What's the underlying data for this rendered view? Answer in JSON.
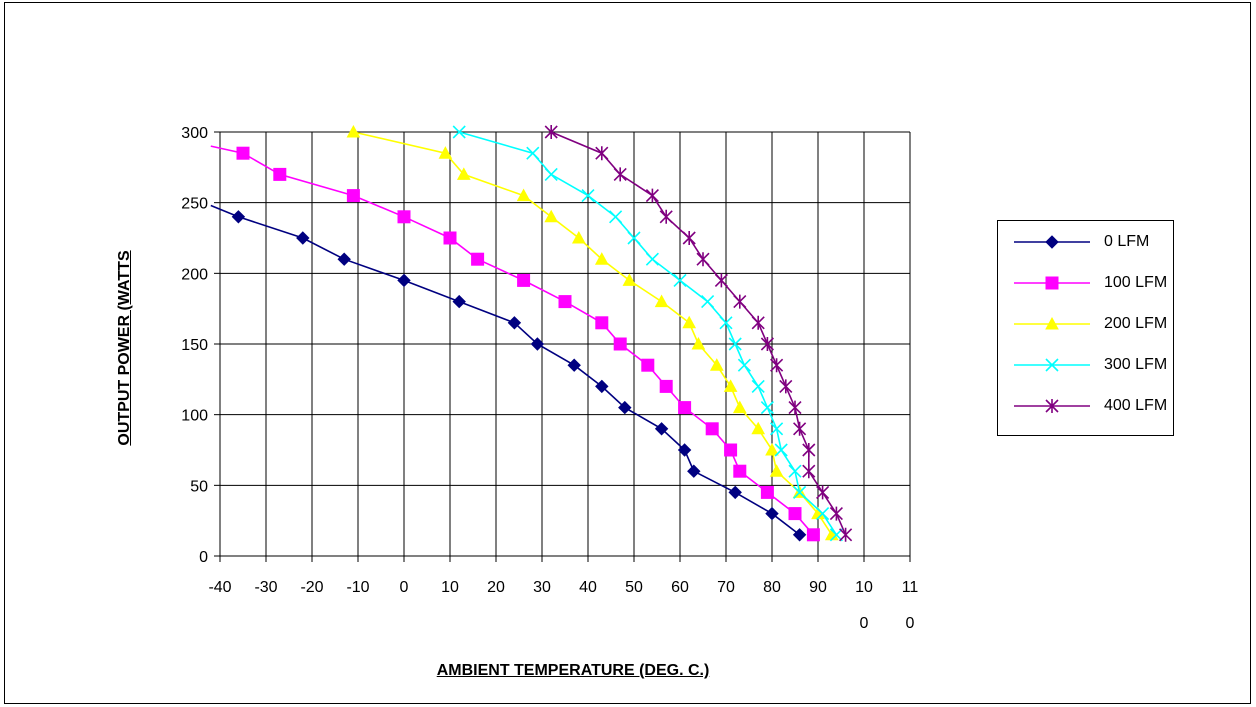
{
  "chart_data": {
    "type": "line",
    "title": "",
    "xlabel": "AMBIENT TEMPERATURE (DEG. C.)",
    "ylabel": "OUTPUT POWER (WATTS",
    "xlim": [
      -40,
      110
    ],
    "ylim": [
      0,
      300
    ],
    "x_ticks": [
      -40,
      -30,
      -20,
      -10,
      0,
      10,
      20,
      30,
      40,
      50,
      60,
      70,
      80,
      90,
      100,
      110
    ],
    "x_tick_labels": [
      [
        "-40"
      ],
      [
        "-30"
      ],
      [
        "-20"
      ],
      [
        "-10"
      ],
      [
        "0"
      ],
      [
        "10"
      ],
      [
        "20"
      ],
      [
        "30"
      ],
      [
        "40"
      ],
      [
        "50"
      ],
      [
        "60"
      ],
      [
        "70"
      ],
      [
        "80"
      ],
      [
        "90"
      ],
      [
        "10",
        "0"
      ],
      [
        "11",
        "0"
      ]
    ],
    "y_ticks": [
      0,
      50,
      100,
      150,
      200,
      250,
      300
    ],
    "y_tick_labels": [
      "0",
      "50",
      "100",
      "150",
      "200",
      "250",
      "300"
    ],
    "grid": true,
    "legend_position": "right",
    "series": [
      {
        "name": "0 LFM",
        "color": "#000080",
        "marker": "diamond",
        "points": [
          [
            -42,
            248
          ],
          [
            -36,
            240
          ],
          [
            -22,
            225
          ],
          [
            -13,
            210
          ],
          [
            0,
            195
          ],
          [
            12,
            180
          ],
          [
            24,
            165
          ],
          [
            29,
            150
          ],
          [
            37,
            135
          ],
          [
            43,
            120
          ],
          [
            48,
            105
          ],
          [
            56,
            90
          ],
          [
            61,
            75
          ],
          [
            63,
            60
          ],
          [
            72,
            45
          ],
          [
            80,
            30
          ],
          [
            86,
            15
          ]
        ]
      },
      {
        "name": "100 LFM",
        "color": "#ff00ff",
        "marker": "square",
        "points": [
          [
            -42,
            290
          ],
          [
            -35,
            285
          ],
          [
            -27,
            270
          ],
          [
            -11,
            255
          ],
          [
            0,
            240
          ],
          [
            10,
            225
          ],
          [
            16,
            210
          ],
          [
            26,
            195
          ],
          [
            35,
            180
          ],
          [
            43,
            165
          ],
          [
            47,
            150
          ],
          [
            53,
            135
          ],
          [
            57,
            120
          ],
          [
            61,
            105
          ],
          [
            67,
            90
          ],
          [
            71,
            75
          ],
          [
            73,
            60
          ],
          [
            79,
            45
          ],
          [
            85,
            30
          ],
          [
            89,
            15
          ]
        ]
      },
      {
        "name": "200 LFM",
        "color": "#ffff00",
        "marker": "triangle",
        "points": [
          [
            -11,
            300
          ],
          [
            9,
            285
          ],
          [
            13,
            270
          ],
          [
            26,
            255
          ],
          [
            32,
            240
          ],
          [
            38,
            225
          ],
          [
            43,
            210
          ],
          [
            49,
            195
          ],
          [
            56,
            180
          ],
          [
            62,
            165
          ],
          [
            64,
            150
          ],
          [
            68,
            135
          ],
          [
            71,
            120
          ],
          [
            73,
            105
          ],
          [
            77,
            90
          ],
          [
            80,
            75
          ],
          [
            81,
            60
          ],
          [
            86,
            45
          ],
          [
            90,
            30
          ],
          [
            93,
            15
          ]
        ]
      },
      {
        "name": "300 LFM",
        "color": "#00ffff",
        "marker": "x",
        "points": [
          [
            12,
            300
          ],
          [
            28,
            285
          ],
          [
            32,
            270
          ],
          [
            40,
            255
          ],
          [
            46,
            240
          ],
          [
            50,
            225
          ],
          [
            54,
            210
          ],
          [
            60,
            195
          ],
          [
            66,
            180
          ],
          [
            70,
            165
          ],
          [
            72,
            150
          ],
          [
            74,
            135
          ],
          [
            77,
            120
          ],
          [
            79,
            105
          ],
          [
            81,
            90
          ],
          [
            82,
            75
          ],
          [
            85,
            60
          ],
          [
            86,
            45
          ],
          [
            91,
            30
          ],
          [
            94,
            15
          ]
        ]
      },
      {
        "name": "400 LFM",
        "color": "#800080",
        "marker": "asterisk",
        "points": [
          [
            32,
            300
          ],
          [
            43,
            285
          ],
          [
            47,
            270
          ],
          [
            54,
            255
          ],
          [
            57,
            240
          ],
          [
            62,
            225
          ],
          [
            65,
            210
          ],
          [
            69,
            195
          ],
          [
            73,
            180
          ],
          [
            77,
            165
          ],
          [
            79,
            150
          ],
          [
            81,
            135
          ],
          [
            83,
            120
          ],
          [
            85,
            105
          ],
          [
            86,
            90
          ],
          [
            88,
            75
          ],
          [
            88,
            60
          ],
          [
            91,
            45
          ],
          [
            94,
            30
          ],
          [
            96,
            15
          ]
        ]
      }
    ]
  }
}
